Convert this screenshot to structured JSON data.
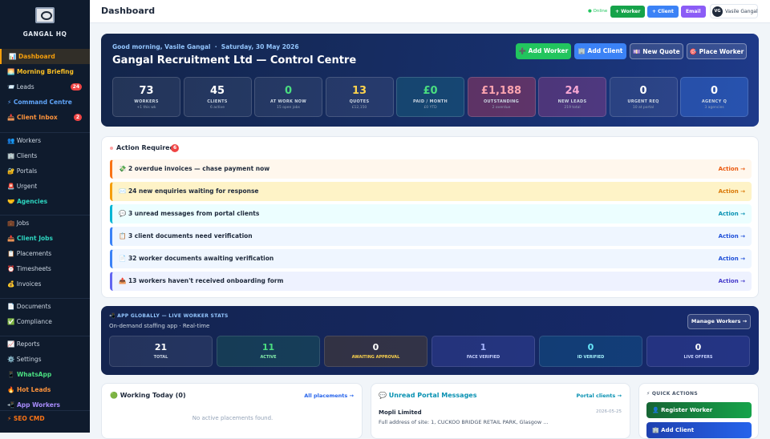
{
  "sidebar": {
    "brand": "GANGAL HQ",
    "sections": [
      [
        {
          "label": "📊 Dashboard",
          "color": "#f59e0b"
        },
        {
          "label": "🌅 Morning Briefing",
          "color": "#fbbf24"
        },
        {
          "label": "📨 Leads",
          "badge": "24",
          "color": "#cbd5e1"
        },
        {
          "label": "⚡ Command Centre",
          "color": "#60a5fa"
        },
        {
          "label": "📥 Client Inbox",
          "badge": "2",
          "color": "#fb923c"
        }
      ],
      [
        {
          "label": "👥 Workers",
          "color": "#cbd5e1"
        },
        {
          "label": "🏢 Clients",
          "color": "#cbd5e1"
        },
        {
          "label": "🔐 Portals",
          "color": "#cbd5e1"
        },
        {
          "label": "🚨 Urgent",
          "color": "#cbd5e1"
        },
        {
          "label": "🤝 Agencies",
          "color": "#2dd4bf"
        }
      ],
      [
        {
          "label": "💼 Jobs",
          "color": "#cbd5e1"
        },
        {
          "label": "📤 Client Jobs",
          "color": "#2dd4bf"
        },
        {
          "label": "📋 Placements",
          "color": "#cbd5e1"
        },
        {
          "label": "⏰ Timesheets",
          "color": "#cbd5e1"
        },
        {
          "label": "💰 Invoices",
          "color": "#cbd5e1"
        }
      ],
      [
        {
          "label": "📄 Documents",
          "color": "#cbd5e1"
        },
        {
          "label": "✅ Compliance",
          "color": "#cbd5e1"
        }
      ],
      [
        {
          "label": "📈 Reports",
          "color": "#cbd5e1"
        },
        {
          "label": "⚙️ Settings",
          "color": "#cbd5e1"
        },
        {
          "label": "📱 WhatsApp",
          "color": "#4ade80"
        },
        {
          "label": "🔥 Hot Leads",
          "color": "#fb923c"
        },
        {
          "label": "📲 App Workers",
          "color": "#a78bfa"
        }
      ],
      [
        {
          "label": "⚡ SEO CMD",
          "color": "#f97316"
        }
      ]
    ]
  },
  "header": {
    "title": "Dashboard",
    "status": "● Online",
    "buttons": [
      "+ Worker",
      "+ Client",
      "Email"
    ],
    "avatar": "VG",
    "user": "Vasile Gangal"
  },
  "hero": {
    "greeting": "Good morning, Vasile Gangal  ·  Saturday, 30 May 2026",
    "title": "Gangal Recruitment Ltd — Control Centre",
    "buttons": [
      "➕ Add Worker",
      "🏢 Add Client",
      "💷 New Quote",
      "🎯 Place Worker"
    ],
    "stats": [
      {
        "value": "73",
        "label": "WORKERS",
        "sub": "+1 this wk",
        "color": "#ffffff"
      },
      {
        "value": "45",
        "label": "CLIENTS",
        "sub": "6 active",
        "color": "#ffffff"
      },
      {
        "value": "0",
        "label": "AT WORK NOW",
        "sub": "15 open jobs",
        "color": "#4ade80"
      },
      {
        "value": "13",
        "label": "QUOTES",
        "sub": "£12,150",
        "color": "#fcd34d"
      },
      {
        "value": "£0",
        "label": "PAID / MONTH",
        "sub": "£0 YTD",
        "color": "#4ade80"
      },
      {
        "value": "£1,188",
        "label": "OUTSTANDING",
        "sub": "2 overdue",
        "color": "#fda4af"
      },
      {
        "value": "24",
        "label": "NEW LEADS",
        "sub": "219 total",
        "color": "#f9a8d4"
      },
      {
        "value": "0",
        "label": "URGENT REQ",
        "sub": "10 at portal",
        "color": "#ffffff"
      },
      {
        "value": "0",
        "label": "AGENCY Q",
        "sub": "3 agencies",
        "color": "#ffffff"
      }
    ]
  },
  "actions": {
    "title": "Action Required",
    "count": "6",
    "rows": [
      {
        "text": "💸 2 overdue invoices — chase payment now",
        "link": "Action →"
      },
      {
        "text": "✉️ 24 new enquiries waiting for response",
        "link": "Action →"
      },
      {
        "text": "💬 3 unread messages from portal clients",
        "link": "Action →"
      },
      {
        "text": "📋 3 client documents need verification",
        "link": "Action →"
      },
      {
        "text": "📄 32 worker documents awaiting verification",
        "link": "Action →"
      },
      {
        "text": "📤 13 workers haven't received onboarding form",
        "link": "Action →"
      }
    ]
  },
  "app": {
    "title": "📲 APP GLOBALLY — LIVE WORKER STATS",
    "subtitle": "On-demand staffing app · Real-time",
    "button": "Manage Workers →",
    "stats": [
      {
        "value": "21",
        "label": "TOTAL"
      },
      {
        "value": "11",
        "label": "ACTIVE"
      },
      {
        "value": "0",
        "label": "AWAITING APPROVAL"
      },
      {
        "value": "1",
        "label": "FACE VERIFIED"
      },
      {
        "value": "0",
        "label": "ID VERIFIED"
      },
      {
        "value": "0",
        "label": "LIVE OFFERS"
      }
    ]
  },
  "working": {
    "title": "🟢 Working Today (0)",
    "link": "All placements →",
    "empty": "No active placements found."
  },
  "messages": {
    "title": "💬 Unread Portal Messages",
    "link": "Portal clients →",
    "items": [
      {
        "from": "Mopli Limited",
        "date": "2026-05-25",
        "text": "Full address of site: 1, CUCKOO BRIDGE RETAIL PARK, Glasgow ..."
      }
    ]
  },
  "quick": {
    "title": "⚡ QUICK ACTIONS",
    "buttons": [
      "👤 Register Worker",
      "🏢 Add Client"
    ]
  }
}
